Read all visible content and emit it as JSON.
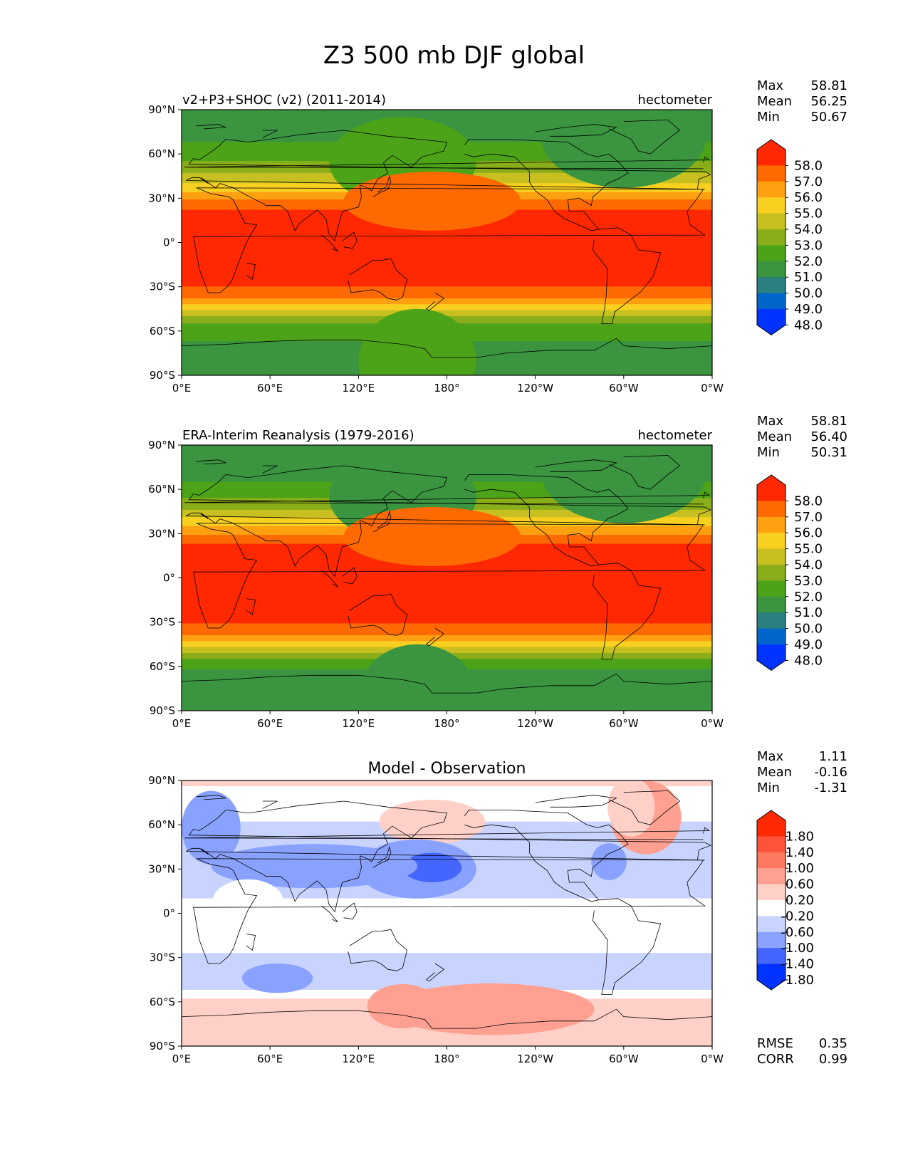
{
  "figure": {
    "title": "Z3 500 mb DJF global"
  },
  "axes": {
    "lat_ticks": [
      "90°N",
      "60°N",
      "30°N",
      "0°",
      "30°S",
      "60°S",
      "90°S"
    ],
    "lon_ticks": [
      "0°E",
      "60°E",
      "120°E",
      "180°",
      "120°W",
      "60°W",
      "0°W"
    ]
  },
  "colors": {
    "abs_levels": [
      "#0033ff",
      "#0066cc",
      "#2a7f7f",
      "#3a9440",
      "#4ca318",
      "#8aae1a",
      "#c8c020",
      "#f8d020",
      "#ffa010",
      "#ff6a00",
      "#ff2800"
    ],
    "diff_levels": [
      "#0033ff",
      "#4466ff",
      "#8aa2ff",
      "#c8d4ff",
      "#ffffff",
      "#ffd0c8",
      "#ffa090",
      "#ff7860",
      "#ff5238",
      "#ff2800"
    ]
  },
  "chart_data": [
    {
      "type": "heatmap",
      "panel": "model",
      "left_title": "v2+P3+SHOC (v2) (2011-2014)",
      "right_title": "hectometer",
      "stats": {
        "max_label": "Max",
        "max": "58.81",
        "mean_label": "Mean",
        "mean": "56.25",
        "min_label": "Min",
        "min": "50.67"
      },
      "colorbar_labels": [
        "58.0",
        "57.0",
        "56.0",
        "55.0",
        "54.0",
        "53.0",
        "52.0",
        "51.0",
        "50.0",
        "49.0",
        "48.0"
      ],
      "zonal_profile": {
        "lat": [
          90,
          75,
          60,
          50,
          40,
          30,
          20,
          0,
          -20,
          -30,
          -35,
          -40,
          -45,
          -50,
          -55,
          -60,
          -70,
          -90
        ],
        "z3": [
          51.3,
          51.5,
          52.5,
          53.5,
          55.0,
          56.8,
          58.3,
          58.5,
          58.3,
          58.0,
          57.5,
          56.5,
          55.2,
          54.0,
          53.0,
          52.5,
          51.8,
          51.5
        ]
      }
    },
    {
      "type": "heatmap",
      "panel": "observation",
      "left_title": "ERA-Interim Reanalysis (1979-2016)",
      "right_title": "hectometer",
      "stats": {
        "max_label": "Max",
        "max": "58.81",
        "mean_label": "Mean",
        "mean": "56.40",
        "min_label": "Min",
        "min": "50.31"
      },
      "colorbar_labels": [
        "58.0",
        "57.0",
        "56.0",
        "55.0",
        "54.0",
        "53.0",
        "52.0",
        "51.0",
        "50.0",
        "49.0",
        "48.0"
      ],
      "zonal_profile": {
        "lat": [
          90,
          75,
          60,
          50,
          40,
          30,
          20,
          0,
          -20,
          -30,
          -35,
          -40,
          -45,
          -50,
          -55,
          -60,
          -70,
          -90
        ],
        "z3": [
          51.1,
          51.4,
          52.3,
          53.4,
          55.1,
          56.9,
          58.4,
          58.5,
          58.4,
          58.1,
          57.6,
          56.8,
          55.5,
          54.2,
          53.0,
          52.2,
          51.3,
          51.0
        ]
      }
    },
    {
      "type": "heatmap",
      "panel": "difference",
      "center_title": "Model - Observation",
      "stats": {
        "max_label": "Max",
        "max": "1.11",
        "mean_label": "Mean",
        "mean": "-0.16",
        "min_label": "Min",
        "min": "-1.31"
      },
      "colorbar_labels": [
        "1.80",
        "1.40",
        "1.00",
        "0.60",
        "0.20",
        "-0.20",
        "-0.60",
        "-1.00",
        "-1.40",
        "-1.80"
      ],
      "metrics": {
        "rmse_label": "RMSE",
        "rmse": "0.35",
        "corr_label": "CORR",
        "corr": "0.99"
      },
      "zonal_profile": {
        "lat": [
          90,
          70,
          50,
          30,
          15,
          0,
          -20,
          -40,
          -50,
          -60,
          -70,
          -90
        ],
        "diff": [
          0.25,
          0.0,
          -0.5,
          -0.45,
          -0.3,
          0.0,
          -0.1,
          -0.4,
          -0.3,
          0.35,
          0.45,
          0.35
        ]
      }
    }
  ]
}
